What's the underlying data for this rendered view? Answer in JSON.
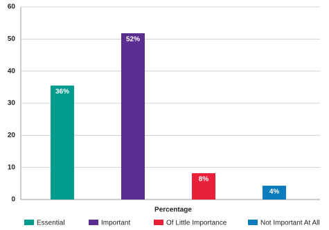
{
  "chart_data": {
    "type": "bar",
    "categories": [
      "Essential",
      "Important",
      "Of Little Importance",
      "Not Important At All"
    ],
    "values": [
      35.5,
      51.8,
      8.2,
      4.3
    ],
    "value_labels": [
      "36%",
      "52%",
      "8%",
      "4%"
    ],
    "colors": [
      "#009a8e",
      "#5a2d91",
      "#e8203a",
      "#0a7bbd"
    ],
    "x_label": "Percentage",
    "ylim": [
      0,
      60
    ],
    "yticks": [
      0,
      10,
      20,
      30,
      40,
      50,
      60
    ],
    "grid": true,
    "legend": "bottom"
  }
}
